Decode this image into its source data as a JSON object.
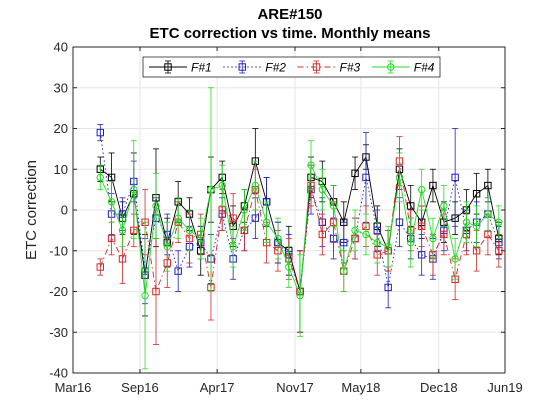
{
  "chart_data": {
    "type": "line",
    "title": "ARE#150",
    "subtitle": "ETC correction vs time. Monthly means",
    "xlabel": "",
    "ylabel": "ETC correction",
    "ylim": [
      -40,
      40
    ],
    "yticks": [
      -40,
      -30,
      -20,
      -10,
      0,
      10,
      20,
      30,
      40
    ],
    "xlim": [
      "2016-03-01",
      "2019-06-01"
    ],
    "xticks": [
      {
        "date": "2016-03-01",
        "label": "Mar16"
      },
      {
        "date": "2016-09-01",
        "label": "Sep16"
      },
      {
        "date": "2017-04-01",
        "label": "Apr17"
      },
      {
        "date": "2017-11-01",
        "label": "Nov17"
      },
      {
        "date": "2018-05-01",
        "label": "May18"
      },
      {
        "date": "2018-12-01",
        "label": "Dec18"
      },
      {
        "date": "2019-06-01",
        "label": "Jun19"
      }
    ],
    "grid": true,
    "legend_position": "top",
    "series": [
      {
        "name": "F#1",
        "color": "#000000",
        "marker": "square",
        "style": "solid",
        "points": [
          {
            "x": "2016-05-15",
            "y": 10,
            "err": 3
          },
          {
            "x": "2016-06-15",
            "y": 8,
            "err": 6
          },
          {
            "x": "2016-07-15",
            "y": -2,
            "err": 4
          },
          {
            "x": "2016-08-15",
            "y": 4,
            "err": 10
          },
          {
            "x": "2016-09-15",
            "y": -16,
            "err": 10
          },
          {
            "x": "2016-10-15",
            "y": 3,
            "err": 12
          },
          {
            "x": "2016-11-15",
            "y": -8,
            "err": 6
          },
          {
            "x": "2016-12-15",
            "y": 2,
            "err": 5
          },
          {
            "x": "2017-01-15",
            "y": -1,
            "err": 4
          },
          {
            "x": "2017-02-15",
            "y": -10,
            "err": 6
          },
          {
            "x": "2017-03-15",
            "y": 5,
            "err": 8
          },
          {
            "x": "2017-04-15",
            "y": 8,
            "err": 4
          },
          {
            "x": "2017-05-15",
            "y": -4,
            "err": 5
          },
          {
            "x": "2017-06-15",
            "y": 1,
            "err": 4
          },
          {
            "x": "2017-07-15",
            "y": 12,
            "err": 8
          },
          {
            "x": "2017-08-15",
            "y": 2,
            "err": 6
          },
          {
            "x": "2017-09-15",
            "y": -8,
            "err": 5
          },
          {
            "x": "2017-10-15",
            "y": -10,
            "err": 6
          },
          {
            "x": "2017-11-15",
            "y": -20,
            "err": 10
          },
          {
            "x": "2017-12-15",
            "y": 8,
            "err": 5
          },
          {
            "x": "2018-01-15",
            "y": 7,
            "err": 5
          },
          {
            "x": "2018-02-15",
            "y": 2,
            "err": 4
          },
          {
            "x": "2018-03-15",
            "y": -3,
            "err": 5
          },
          {
            "x": "2018-04-15",
            "y": 9,
            "err": 4
          },
          {
            "x": "2018-05-15",
            "y": 13,
            "err": 3
          },
          {
            "x": "2018-06-15",
            "y": -4,
            "err": 5
          },
          {
            "x": "2018-07-15",
            "y": -10,
            "err": 5
          },
          {
            "x": "2018-08-15",
            "y": 10,
            "err": 5
          },
          {
            "x": "2018-09-15",
            "y": 1,
            "err": 5
          },
          {
            "x": "2018-10-15",
            "y": -3,
            "err": 4
          },
          {
            "x": "2018-11-15",
            "y": 6,
            "err": 4
          },
          {
            "x": "2018-12-15",
            "y": -3,
            "err": 5
          },
          {
            "x": "2019-01-15",
            "y": -2,
            "err": 4
          },
          {
            "x": "2019-02-15",
            "y": 0,
            "err": 5
          },
          {
            "x": "2019-03-15",
            "y": 4,
            "err": 5
          },
          {
            "x": "2019-04-15",
            "y": 6,
            "err": 4
          },
          {
            "x": "2019-05-15",
            "y": -7,
            "err": 4
          }
        ]
      },
      {
        "name": "F#2",
        "color": "#1f1fbf",
        "marker": "square",
        "style": "dotted",
        "points": [
          {
            "x": "2016-05-15",
            "y": 19,
            "err": 2
          },
          {
            "x": "2016-06-15",
            "y": -1,
            "err": 5
          },
          {
            "x": "2016-07-15",
            "y": -1,
            "err": 4
          },
          {
            "x": "2016-08-15",
            "y": 7,
            "err": 5
          },
          {
            "x": "2016-09-15",
            "y": -15,
            "err": 8
          },
          {
            "x": "2016-10-15",
            "y": -2,
            "err": 5
          },
          {
            "x": "2016-11-15",
            "y": -6,
            "err": 5
          },
          {
            "x": "2016-12-15",
            "y": -15,
            "err": 5
          },
          {
            "x": "2017-01-15",
            "y": -9,
            "err": 5
          },
          {
            "x": "2017-02-15",
            "y": -8,
            "err": 4
          },
          {
            "x": "2017-03-15",
            "y": -12,
            "err": 6
          },
          {
            "x": "2017-04-15",
            "y": -1,
            "err": 4
          },
          {
            "x": "2017-05-15",
            "y": -12,
            "err": 5
          },
          {
            "x": "2017-06-15",
            "y": -5,
            "err": 5
          },
          {
            "x": "2017-07-15",
            "y": -2,
            "err": 5
          },
          {
            "x": "2017-08-15",
            "y": 2,
            "err": 6
          },
          {
            "x": "2017-09-15",
            "y": -8,
            "err": 5
          },
          {
            "x": "2017-10-15",
            "y": -11,
            "err": 5
          },
          {
            "x": "2017-11-15",
            "y": -20,
            "err": 10
          },
          {
            "x": "2017-12-15",
            "y": 5,
            "err": 6
          },
          {
            "x": "2018-01-15",
            "y": -3,
            "err": 6
          },
          {
            "x": "2018-02-15",
            "y": -7,
            "err": 5
          },
          {
            "x": "2018-03-15",
            "y": -8,
            "err": 5
          },
          {
            "x": "2018-04-15",
            "y": -7,
            "err": 5
          },
          {
            "x": "2018-05-15",
            "y": 8,
            "err": 11
          },
          {
            "x": "2018-06-15",
            "y": -5,
            "err": 5
          },
          {
            "x": "2018-07-15",
            "y": -19,
            "err": 5
          },
          {
            "x": "2018-08-15",
            "y": -3,
            "err": 6
          },
          {
            "x": "2018-09-15",
            "y": -7,
            "err": 5
          },
          {
            "x": "2018-10-15",
            "y": -11,
            "err": 5
          },
          {
            "x": "2018-11-15",
            "y": -12,
            "err": 5
          },
          {
            "x": "2018-12-15",
            "y": -5,
            "err": 5
          },
          {
            "x": "2019-01-15",
            "y": 8,
            "err": 12
          },
          {
            "x": "2019-02-15",
            "y": -5,
            "err": 5
          },
          {
            "x": "2019-03-15",
            "y": -3,
            "err": 5
          },
          {
            "x": "2019-04-15",
            "y": -1,
            "err": 4
          },
          {
            "x": "2019-05-15",
            "y": -8,
            "err": 4
          }
        ]
      },
      {
        "name": "F#3",
        "color": "#d62728",
        "marker": "square",
        "style": "dashdot",
        "points": [
          {
            "x": "2016-05-15",
            "y": -14,
            "err": 2
          },
          {
            "x": "2016-06-15",
            "y": -7,
            "err": 4
          },
          {
            "x": "2016-07-15",
            "y": -12,
            "err": 6
          },
          {
            "x": "2016-08-15",
            "y": -5,
            "err": 4
          },
          {
            "x": "2016-09-15",
            "y": -3,
            "err": 8
          },
          {
            "x": "2016-10-15",
            "y": -20,
            "err": 13
          },
          {
            "x": "2016-11-15",
            "y": -13,
            "err": 6
          },
          {
            "x": "2016-12-15",
            "y": -3,
            "err": 5
          },
          {
            "x": "2017-01-15",
            "y": -7,
            "err": 6
          },
          {
            "x": "2017-02-15",
            "y": -6,
            "err": 5
          },
          {
            "x": "2017-03-15",
            "y": -19,
            "err": 8
          },
          {
            "x": "2017-04-15",
            "y": 0,
            "err": 5
          },
          {
            "x": "2017-05-15",
            "y": -2,
            "err": 6
          },
          {
            "x": "2017-06-15",
            "y": -5,
            "err": 5
          },
          {
            "x": "2017-07-15",
            "y": 5,
            "err": 5
          },
          {
            "x": "2017-08-15",
            "y": -8,
            "err": 5
          },
          {
            "x": "2017-09-15",
            "y": -10,
            "err": 5
          },
          {
            "x": "2017-10-15",
            "y": -12,
            "err": 5
          },
          {
            "x": "2017-11-15",
            "y": -20,
            "err": 10
          },
          {
            "x": "2017-12-15",
            "y": 6,
            "err": 5
          },
          {
            "x": "2018-01-15",
            "y": -6,
            "err": 5
          },
          {
            "x": "2018-02-15",
            "y": -3,
            "err": 5
          },
          {
            "x": "2018-03-15",
            "y": -15,
            "err": 5
          },
          {
            "x": "2018-04-15",
            "y": -7,
            "err": 5
          },
          {
            "x": "2018-05-15",
            "y": -4,
            "err": 5
          },
          {
            "x": "2018-06-15",
            "y": -11,
            "err": 5
          },
          {
            "x": "2018-07-15",
            "y": -10,
            "err": 5
          },
          {
            "x": "2018-08-15",
            "y": 12,
            "err": 6
          },
          {
            "x": "2018-09-15",
            "y": -5,
            "err": 5
          },
          {
            "x": "2018-10-15",
            "y": -4,
            "err": 5
          },
          {
            "x": "2018-11-15",
            "y": -11,
            "err": 5
          },
          {
            "x": "2018-12-15",
            "y": -6,
            "err": 5
          },
          {
            "x": "2019-01-15",
            "y": -17,
            "err": 5
          },
          {
            "x": "2019-02-15",
            "y": -6,
            "err": 5
          },
          {
            "x": "2019-03-15",
            "y": -10,
            "err": 5
          },
          {
            "x": "2019-04-15",
            "y": -6,
            "err": 5
          },
          {
            "x": "2019-05-15",
            "y": -10,
            "err": 4
          }
        ]
      },
      {
        "name": "F#4",
        "color": "#22dd22",
        "marker": "circle",
        "style": "solid",
        "points": [
          {
            "x": "2016-05-15",
            "y": 8,
            "err": 3
          },
          {
            "x": "2016-06-15",
            "y": 2,
            "err": 5
          },
          {
            "x": "2016-07-15",
            "y": -5,
            "err": 4
          },
          {
            "x": "2016-08-15",
            "y": 5,
            "err": 12
          },
          {
            "x": "2016-09-15",
            "y": -21,
            "err": 18
          },
          {
            "x": "2016-10-15",
            "y": 1,
            "err": 8
          },
          {
            "x": "2016-11-15",
            "y": -9,
            "err": 6
          },
          {
            "x": "2016-12-15",
            "y": -2,
            "err": 5
          },
          {
            "x": "2017-01-15",
            "y": -5,
            "err": 5
          },
          {
            "x": "2017-02-15",
            "y": -7,
            "err": 5
          },
          {
            "x": "2017-03-15",
            "y": 5,
            "err": 25
          },
          {
            "x": "2017-04-15",
            "y": 6,
            "err": 5
          },
          {
            "x": "2017-05-15",
            "y": -9,
            "err": 5
          },
          {
            "x": "2017-06-15",
            "y": 0,
            "err": 5
          },
          {
            "x": "2017-07-15",
            "y": 6,
            "err": 6
          },
          {
            "x": "2017-08-15",
            "y": -3,
            "err": 5
          },
          {
            "x": "2017-09-15",
            "y": -7,
            "err": 5
          },
          {
            "x": "2017-10-15",
            "y": -14,
            "err": 5
          },
          {
            "x": "2017-11-15",
            "y": -21,
            "err": 10
          },
          {
            "x": "2017-12-15",
            "y": 11,
            "err": 6
          },
          {
            "x": "2018-01-15",
            "y": 5,
            "err": 5
          },
          {
            "x": "2018-02-15",
            "y": 1,
            "err": 5
          },
          {
            "x": "2018-03-15",
            "y": -15,
            "err": 5
          },
          {
            "x": "2018-04-15",
            "y": -5,
            "err": 5
          },
          {
            "x": "2018-05-15",
            "y": -6,
            "err": 5
          },
          {
            "x": "2018-06-15",
            "y": -8,
            "err": 5
          },
          {
            "x": "2018-07-15",
            "y": -9,
            "err": 5
          },
          {
            "x": "2018-08-15",
            "y": 8,
            "err": 6
          },
          {
            "x": "2018-09-15",
            "y": -8,
            "err": 6
          },
          {
            "x": "2018-10-15",
            "y": 5,
            "err": 5
          },
          {
            "x": "2018-11-15",
            "y": -7,
            "err": 5
          },
          {
            "x": "2018-12-15",
            "y": 1,
            "err": 5
          },
          {
            "x": "2019-01-15",
            "y": -12,
            "err": 5
          },
          {
            "x": "2019-02-15",
            "y": -3,
            "err": 5
          },
          {
            "x": "2019-03-15",
            "y": -4,
            "err": 5
          },
          {
            "x": "2019-04-15",
            "y": -1,
            "err": 4
          },
          {
            "x": "2019-05-15",
            "y": -3,
            "err": 4
          }
        ]
      }
    ]
  }
}
